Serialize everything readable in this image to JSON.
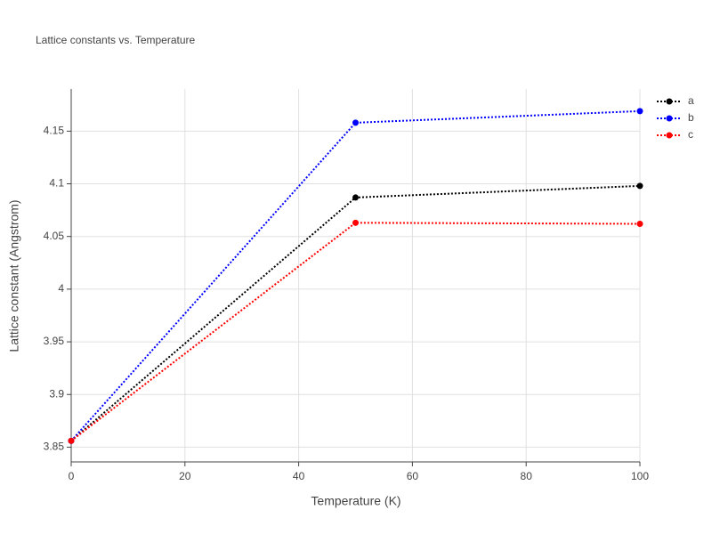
{
  "chart_data": {
    "type": "line",
    "title": "Lattice constants vs. Temperature",
    "x_label": "Temperature (K)",
    "y_label": "Lattice constant (Angstrom)",
    "x": [
      0,
      50,
      100
    ],
    "series": [
      {
        "name": "a",
        "color": "#000000",
        "values": [
          3.856,
          4.087,
          4.098
        ]
      },
      {
        "name": "b",
        "color": "#0000ff",
        "values": [
          3.856,
          4.158,
          4.169
        ]
      },
      {
        "name": "c",
        "color": "#ff0000",
        "values": [
          3.856,
          4.063,
          4.062
        ]
      }
    ],
    "xlim": [
      0,
      100
    ],
    "xticks": [
      0,
      20,
      40,
      60,
      80,
      100
    ],
    "ylim": [
      3.836,
      4.19
    ],
    "yticks": [
      3.85,
      3.9,
      3.95,
      4,
      4.05,
      4.1,
      4.15
    ],
    "grid": true,
    "legend": "top-right",
    "line_style": "dotted"
  }
}
